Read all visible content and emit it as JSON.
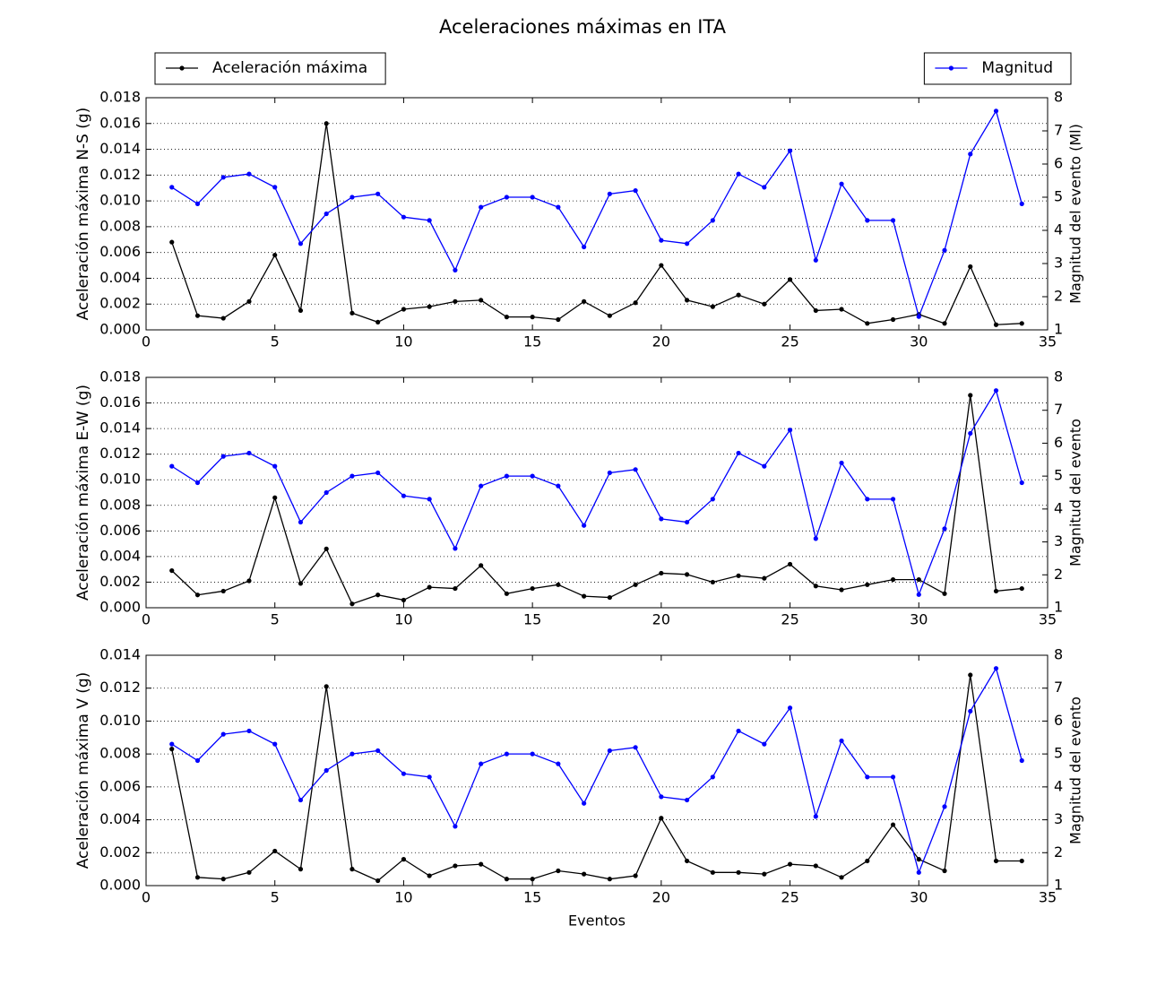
{
  "title": "Aceleraciones máximas en ITA",
  "chart_data": [
    {
      "type": "line",
      "ylabel": "Aceleración máxima N-S (g)",
      "y2label": "Magnitud del evento (Ml)",
      "x": [
        1,
        2,
        3,
        4,
        5,
        6,
        7,
        8,
        9,
        10,
        11,
        12,
        13,
        14,
        15,
        16,
        17,
        18,
        19,
        20,
        21,
        22,
        23,
        24,
        25,
        26,
        27,
        28,
        29,
        30,
        31,
        32,
        33,
        34
      ],
      "xlim": [
        0,
        35
      ],
      "xticks": [
        0,
        5,
        10,
        15,
        20,
        25,
        30,
        35
      ],
      "ylim": [
        0,
        0.018
      ],
      "yticks": [
        {
          "value": 0,
          "label": "0.000"
        },
        {
          "value": 0.002,
          "label": "0.002"
        },
        {
          "value": 0.004,
          "label": "0.004"
        },
        {
          "value": 0.006,
          "label": "0.006"
        },
        {
          "value": 0.008,
          "label": "0.008"
        },
        {
          "value": 0.01,
          "label": "0.010"
        },
        {
          "value": 0.012,
          "label": "0.012"
        },
        {
          "value": 0.014,
          "label": "0.014"
        },
        {
          "value": 0.016,
          "label": "0.016"
        },
        {
          "value": 0.018,
          "label": "0.018"
        }
      ],
      "y2lim": [
        1,
        8
      ],
      "y2ticks": [
        1,
        2,
        3,
        4,
        5,
        6,
        7,
        8
      ],
      "grid": true,
      "series": [
        {
          "name": "Aceleración máxima",
          "color": "#000000",
          "legend": "above left",
          "values": [
            0.0068,
            0.0011,
            0.0009,
            0.0022,
            0.0058,
            0.0015,
            0.016,
            0.0013,
            0.0006,
            0.0016,
            0.0018,
            0.0022,
            0.0023,
            0.001,
            0.001,
            0.0008,
            0.0022,
            0.0011,
            0.0021,
            0.005,
            0.0023,
            0.0018,
            0.0027,
            0.002,
            0.0039,
            0.0015,
            0.0016,
            0.0005,
            0.0008,
            0.0012,
            0.0005,
            0.0049,
            0.0004,
            0.0005
          ]
        },
        {
          "name": "Magnitud",
          "color": "#0000ff",
          "axis": "y2",
          "legend": "above right",
          "values": [
            5.3,
            4.8,
            5.6,
            5.7,
            5.3,
            3.6,
            4.5,
            5.0,
            5.1,
            4.4,
            4.3,
            2.8,
            4.7,
            5.0,
            5.0,
            4.7,
            3.5,
            5.1,
            5.2,
            3.7,
            3.6,
            4.3,
            5.7,
            5.3,
            6.4,
            3.1,
            5.4,
            4.3,
            4.3,
            1.4,
            3.4,
            6.3,
            7.6,
            4.8
          ]
        }
      ]
    },
    {
      "type": "line",
      "ylabel": "Aceleración máxima E-W (g)",
      "y2label": "Magnitud del evento",
      "x": [
        1,
        2,
        3,
        4,
        5,
        6,
        7,
        8,
        9,
        10,
        11,
        12,
        13,
        14,
        15,
        16,
        17,
        18,
        19,
        20,
        21,
        22,
        23,
        24,
        25,
        26,
        27,
        28,
        29,
        30,
        31,
        32,
        33,
        34
      ],
      "xlim": [
        0,
        35
      ],
      "xticks": [
        0,
        5,
        10,
        15,
        20,
        25,
        30,
        35
      ],
      "ylim": [
        0,
        0.018
      ],
      "yticks": [
        {
          "value": 0,
          "label": "0.000"
        },
        {
          "value": 0.002,
          "label": "0.002"
        },
        {
          "value": 0.004,
          "label": "0.004"
        },
        {
          "value": 0.006,
          "label": "0.006"
        },
        {
          "value": 0.008,
          "label": "0.008"
        },
        {
          "value": 0.01,
          "label": "0.010"
        },
        {
          "value": 0.012,
          "label": "0.012"
        },
        {
          "value": 0.014,
          "label": "0.014"
        },
        {
          "value": 0.016,
          "label": "0.016"
        },
        {
          "value": 0.018,
          "label": "0.018"
        }
      ],
      "y2lim": [
        1,
        8
      ],
      "y2ticks": [
        1,
        2,
        3,
        4,
        5,
        6,
        7,
        8
      ],
      "grid": true,
      "series": [
        {
          "color": "#000000",
          "values": [
            0.0029,
            0.001,
            0.0013,
            0.0021,
            0.0086,
            0.0019,
            0.0046,
            0.0003,
            0.001,
            0.0006,
            0.0016,
            0.0015,
            0.0033,
            0.0011,
            0.0015,
            0.0018,
            0.0009,
            0.0008,
            0.0018,
            0.0027,
            0.0026,
            0.002,
            0.0025,
            0.0023,
            0.0034,
            0.0017,
            0.0014,
            0.0018,
            0.0022,
            0.0022,
            0.0011,
            0.0166,
            0.0013,
            0.0015
          ]
        },
        {
          "color": "#0000ff",
          "axis": "y2",
          "values": [
            5.3,
            4.8,
            5.6,
            5.7,
            5.3,
            3.6,
            4.5,
            5.0,
            5.1,
            4.4,
            4.3,
            2.8,
            4.7,
            5.0,
            5.0,
            4.7,
            3.5,
            5.1,
            5.2,
            3.7,
            3.6,
            4.3,
            5.7,
            5.3,
            6.4,
            3.1,
            5.4,
            4.3,
            4.3,
            1.4,
            3.4,
            6.3,
            7.6,
            4.8
          ]
        }
      ]
    },
    {
      "type": "line",
      "ylabel": "Aceleración máxima V (g)",
      "y2label": "Magnitud del evento",
      "xlabel": "Eventos",
      "x": [
        1,
        2,
        3,
        4,
        5,
        6,
        7,
        8,
        9,
        10,
        11,
        12,
        13,
        14,
        15,
        16,
        17,
        18,
        19,
        20,
        21,
        22,
        23,
        24,
        25,
        26,
        27,
        28,
        29,
        30,
        31,
        32,
        33,
        34
      ],
      "xlim": [
        0,
        35
      ],
      "xticks": [
        0,
        5,
        10,
        15,
        20,
        25,
        30,
        35
      ],
      "ylim": [
        0,
        0.014
      ],
      "yticks": [
        {
          "value": 0,
          "label": "0.000"
        },
        {
          "value": 0.002,
          "label": "0.002"
        },
        {
          "value": 0.004,
          "label": "0.004"
        },
        {
          "value": 0.006,
          "label": "0.006"
        },
        {
          "value": 0.008,
          "label": "0.008"
        },
        {
          "value": 0.01,
          "label": "0.010"
        },
        {
          "value": 0.012,
          "label": "0.012"
        },
        {
          "value": 0.014,
          "label": "0.014"
        }
      ],
      "y2lim": [
        1,
        8
      ],
      "y2ticks": [
        1,
        2,
        3,
        4,
        5,
        6,
        7,
        8
      ],
      "grid": true,
      "series": [
        {
          "color": "#000000",
          "values": [
            0.0083,
            0.0005,
            0.0004,
            0.0008,
            0.0021,
            0.001,
            0.0121,
            0.001,
            0.0003,
            0.0016,
            0.0006,
            0.0012,
            0.0013,
            0.0004,
            0.0004,
            0.0009,
            0.0007,
            0.0004,
            0.0006,
            0.0041,
            0.0015,
            0.0008,
            0.0008,
            0.0007,
            0.0013,
            0.0012,
            0.0005,
            0.0015,
            0.0037,
            0.0016,
            0.0009,
            0.0128,
            0.0015,
            0.0015
          ]
        },
        {
          "color": "#0000ff",
          "axis": "y2",
          "values": [
            5.3,
            4.8,
            5.6,
            5.7,
            5.3,
            3.6,
            4.5,
            5.0,
            5.1,
            4.4,
            4.3,
            2.8,
            4.7,
            5.0,
            5.0,
            4.7,
            3.5,
            5.1,
            5.2,
            3.7,
            3.6,
            4.3,
            5.7,
            5.3,
            6.4,
            3.1,
            5.4,
            4.3,
            4.3,
            1.4,
            3.4,
            6.3,
            7.6,
            4.8
          ]
        }
      ]
    }
  ]
}
